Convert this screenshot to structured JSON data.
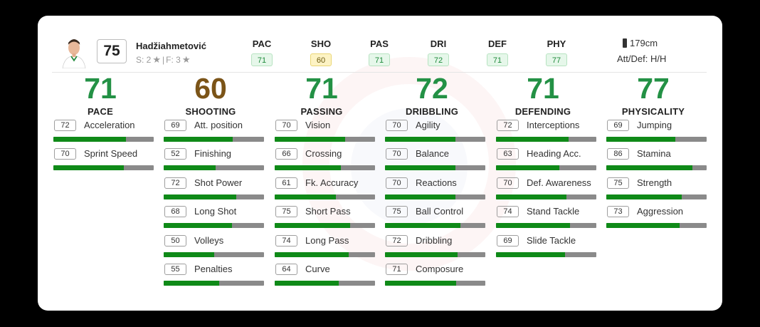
{
  "player": {
    "name": "Hadžiahmetović",
    "overall": "75",
    "skills_text": "S: 2",
    "separator": "|",
    "weak_foot_text": "F: 3",
    "height": "179cm",
    "work_rate": "Att/Def: H/H"
  },
  "header_stats": [
    {
      "label": "PAC",
      "value": "71",
      "color": "green"
    },
    {
      "label": "SHO",
      "value": "60",
      "color": "yellow"
    },
    {
      "label": "PAS",
      "value": "71",
      "color": "green"
    },
    {
      "label": "DRI",
      "value": "72",
      "color": "green"
    },
    {
      "label": "DEF",
      "value": "71",
      "color": "green"
    },
    {
      "label": "PHY",
      "value": "77",
      "color": "green"
    }
  ],
  "categories": [
    {
      "name": "PACE",
      "value": "71",
      "color": "green",
      "stats": [
        {
          "name": "Acceleration",
          "value": "72"
        },
        {
          "name": "Sprint Speed",
          "value": "70"
        }
      ]
    },
    {
      "name": "SHOOTING",
      "value": "60",
      "color": "brown",
      "stats": [
        {
          "name": "Att. position",
          "value": "69"
        },
        {
          "name": "Finishing",
          "value": "52"
        },
        {
          "name": "Shot Power",
          "value": "72"
        },
        {
          "name": "Long Shot",
          "value": "68"
        },
        {
          "name": "Volleys",
          "value": "50"
        },
        {
          "name": "Penalties",
          "value": "55"
        }
      ]
    },
    {
      "name": "PASSING",
      "value": "71",
      "color": "green",
      "stats": [
        {
          "name": "Vision",
          "value": "70"
        },
        {
          "name": "Crossing",
          "value": "66"
        },
        {
          "name": "Fk. Accuracy",
          "value": "61"
        },
        {
          "name": "Short Pass",
          "value": "75"
        },
        {
          "name": "Long Pass",
          "value": "74"
        },
        {
          "name": "Curve",
          "value": "64"
        }
      ]
    },
    {
      "name": "DRIBBLING",
      "value": "72",
      "color": "green",
      "stats": [
        {
          "name": "Agility",
          "value": "70"
        },
        {
          "name": "Balance",
          "value": "70"
        },
        {
          "name": "Reactions",
          "value": "70"
        },
        {
          "name": "Ball Control",
          "value": "75"
        },
        {
          "name": "Dribbling",
          "value": "72"
        },
        {
          "name": "Composure",
          "value": "71"
        }
      ]
    },
    {
      "name": "DEFENDING",
      "value": "71",
      "color": "green",
      "stats": [
        {
          "name": "Interceptions",
          "value": "72"
        },
        {
          "name": "Heading Acc.",
          "value": "63"
        },
        {
          "name": "Def. Awareness",
          "value": "70"
        },
        {
          "name": "Stand Tackle",
          "value": "74"
        },
        {
          "name": "Slide Tackle",
          "value": "69"
        }
      ]
    },
    {
      "name": "PHYSICALITY",
      "value": "77",
      "color": "green",
      "stats": [
        {
          "name": "Jumping",
          "value": "69"
        },
        {
          "name": "Stamina",
          "value": "86"
        },
        {
          "name": "Strength",
          "value": "75"
        },
        {
          "name": "Aggression",
          "value": "73"
        }
      ]
    }
  ],
  "icons": {
    "star": "star-icon",
    "height": "height-icon",
    "avatar": "player-avatar"
  }
}
